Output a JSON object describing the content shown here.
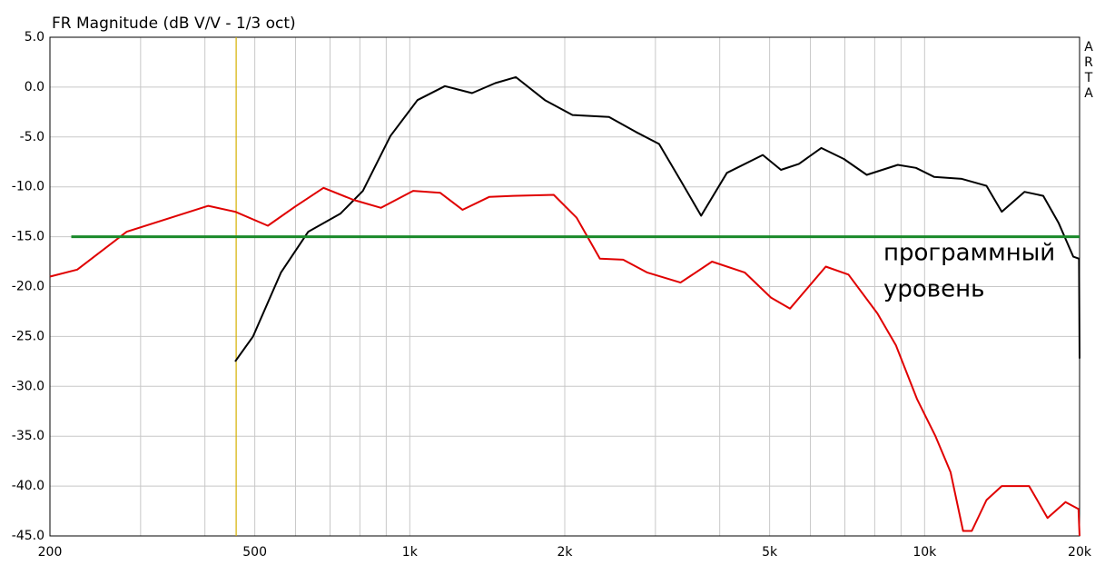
{
  "chart_data": {
    "type": "line",
    "title": "FR Magnitude (dB V/V - 1/3 oct)",
    "watermark": "ARTA",
    "log_x": true,
    "xlim": [
      200,
      20000
    ],
    "ylim": [
      -45,
      5
    ],
    "xticks": [
      200,
      500,
      {
        "value": 1000,
        "label": "1k"
      },
      {
        "value": 2000,
        "label": "2k"
      },
      {
        "value": 5000,
        "label": "5k"
      },
      {
        "value": 10000,
        "label": "10k"
      },
      {
        "value": 20000,
        "label": "20k"
      }
    ],
    "xminor": [
      300,
      400,
      600,
      700,
      800,
      900,
      3000,
      4000,
      6000,
      7000,
      8000,
      9000
    ],
    "yticks": [
      {
        "value": 5,
        "label": "5.0"
      },
      {
        "value": 0,
        "label": "0.0"
      },
      {
        "value": -5,
        "label": "-5.0"
      },
      {
        "value": -10,
        "label": "-10.0"
      },
      {
        "value": -15,
        "label": "-15.0"
      },
      {
        "value": -20,
        "label": "-20.0"
      },
      {
        "value": -25,
        "label": "-25.0"
      },
      {
        "value": -30,
        "label": "-30.0"
      },
      {
        "value": -35,
        "label": "-35.0"
      },
      {
        "value": -40,
        "label": "-40.0"
      },
      {
        "value": -45,
        "label": "-45.0"
      }
    ],
    "grid": true,
    "marker_x": 460,
    "marker_color": "#d4b000",
    "series": [
      {
        "color": "#000000",
        "x": [
          458,
          496,
          562,
          635,
          733,
          811,
          917,
          1035,
          1170,
          1321,
          1466,
          1607,
          1830,
          2070,
          2437,
          2750,
          3050,
          3370,
          3680,
          4130,
          4850,
          5260,
          5700,
          6300,
          6970,
          7720,
          8870,
          9620,
          10430,
          11810,
          13190,
          14120,
          15630,
          17000,
          18200,
          19450,
          19950,
          20000
        ],
        "values": [
          -27.5,
          -25.0,
          -18.6,
          -14.5,
          -12.7,
          -10.4,
          -4.9,
          -1.3,
          0.1,
          -0.6,
          0.4,
          1.0,
          -1.3,
          -2.8,
          -3.0,
          -4.5,
          -5.7,
          -9.5,
          -12.9,
          -8.6,
          -6.8,
          -8.3,
          -7.7,
          -6.1,
          -7.2,
          -8.8,
          -7.8,
          -8.1,
          -9.0,
          -9.2,
          -9.9,
          -12.5,
          -10.5,
          -10.9,
          -13.6,
          -17.0,
          -17.2,
          -27.2
        ]
      },
      {
        "color": "#e00000",
        "x": [
          200,
          226,
          282,
          406,
          458,
          530,
          598,
          680,
          777,
          879,
          1015,
          1146,
          1266,
          1428,
          1588,
          1904,
          2109,
          2340,
          2597,
          2894,
          3356,
          3864,
          4476,
          5029,
          5477,
          6427,
          7116,
          8100,
          8800,
          9670,
          10500,
          11230,
          11880,
          12350,
          13190,
          14120,
          15960,
          17330,
          18780,
          19900,
          20000
        ],
        "values": [
          -19.0,
          -18.3,
          -14.5,
          -11.9,
          -12.5,
          -13.9,
          -12.0,
          -10.1,
          -11.3,
          -12.1,
          -10.4,
          -10.6,
          -12.3,
          -11.0,
          -10.9,
          -10.8,
          -13.1,
          -17.2,
          -17.3,
          -18.6,
          -19.6,
          -17.5,
          -18.6,
          -21.1,
          -22.2,
          -18.0,
          -18.8,
          -22.7,
          -25.9,
          -31.3,
          -35.0,
          -38.6,
          -44.5,
          -44.5,
          -41.4,
          -40.0,
          -40.0,
          -43.2,
          -41.6,
          -42.3,
          -45.0
        ]
      },
      {
        "color": "#1a8a2a",
        "x": [
          220,
          20000
        ],
        "values": [
          -15,
          -15
        ]
      }
    ],
    "annotation": [
      "программный",
      "уровень"
    ],
    "annotation_color": "#1a8a2a"
  }
}
